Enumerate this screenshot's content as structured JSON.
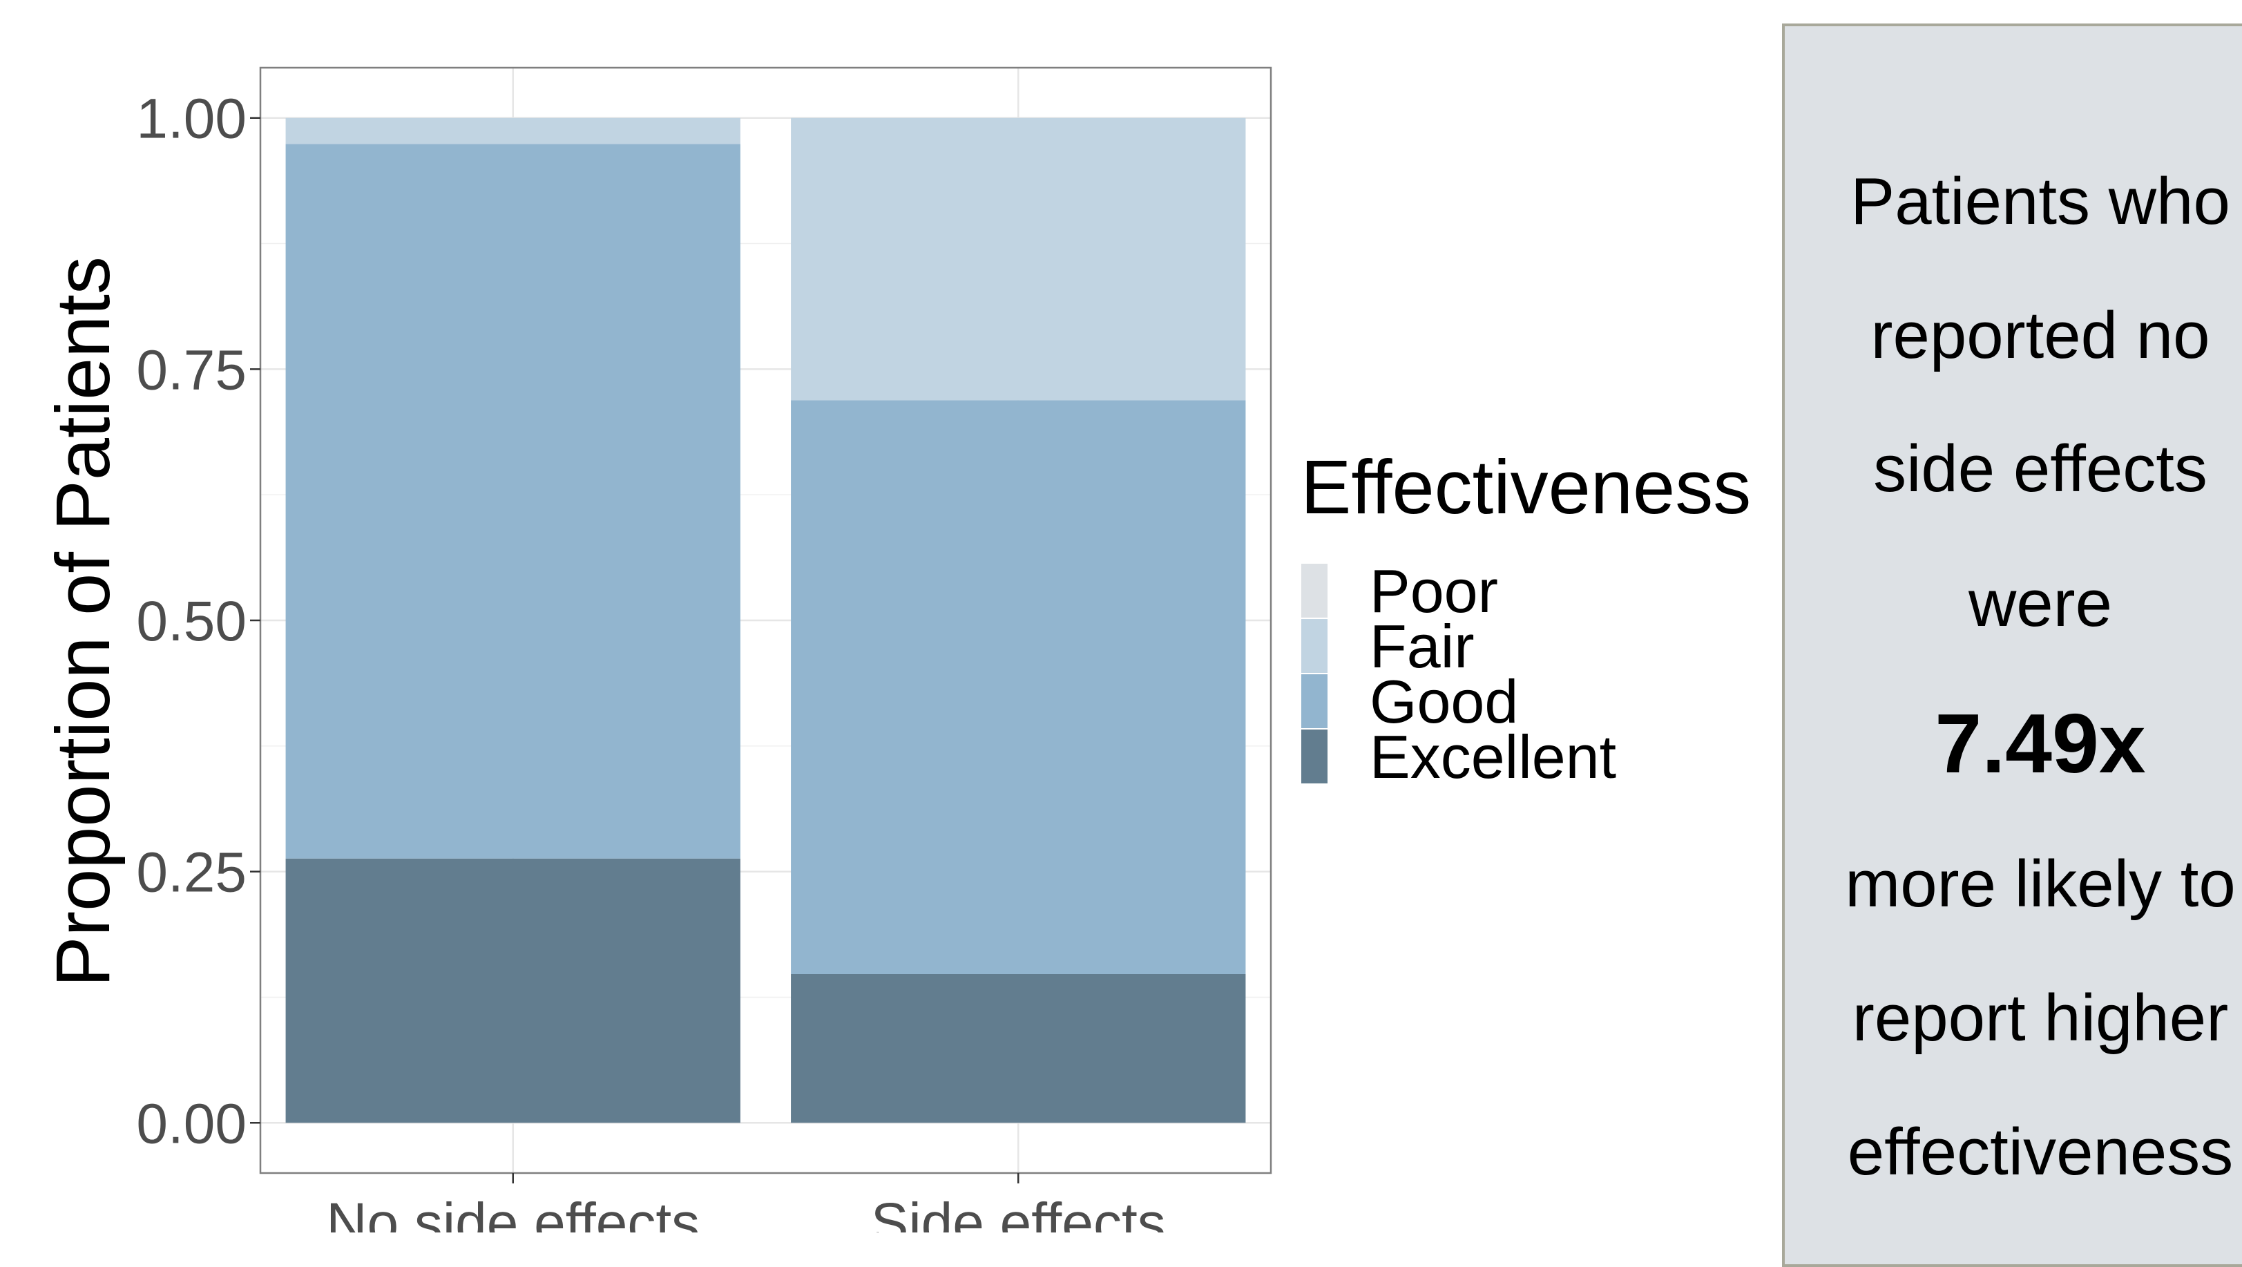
{
  "chart_data": {
    "type": "bar",
    "stacked": true,
    "categories": [
      "No side effects",
      "Side effects"
    ],
    "series": [
      {
        "name": "Excellent",
        "color": "#627d8f",
        "values": [
          0.263,
          0.148
        ]
      },
      {
        "name": "Good",
        "color": "#92b5cf",
        "values": [
          0.711,
          0.571
        ]
      },
      {
        "name": "Fair",
        "color": "#c1d4e2",
        "values": [
          0.026,
          0.281
        ]
      },
      {
        "name": "Poor",
        "color": "#dde1e5",
        "values": [
          0.0,
          0.0
        ]
      }
    ],
    "ylabel": "Proportion of Patients",
    "xlabel": "",
    "yticks": [
      "0.00",
      "0.25",
      "0.50",
      "0.75",
      "1.00"
    ],
    "ylim": [
      -0.05,
      1.05
    ],
    "grid": true,
    "legend": {
      "title": "Effectiveness",
      "placement": "right",
      "entries": [
        "Poor",
        "Fair",
        "Good",
        "Excellent"
      ]
    }
  },
  "annotation": {
    "lines": [
      "Patients who",
      "reported no",
      "side effects",
      "were",
      "7.49x",
      "more likely to",
      "report higher",
      "effectiveness"
    ],
    "highlight_index": 4
  }
}
